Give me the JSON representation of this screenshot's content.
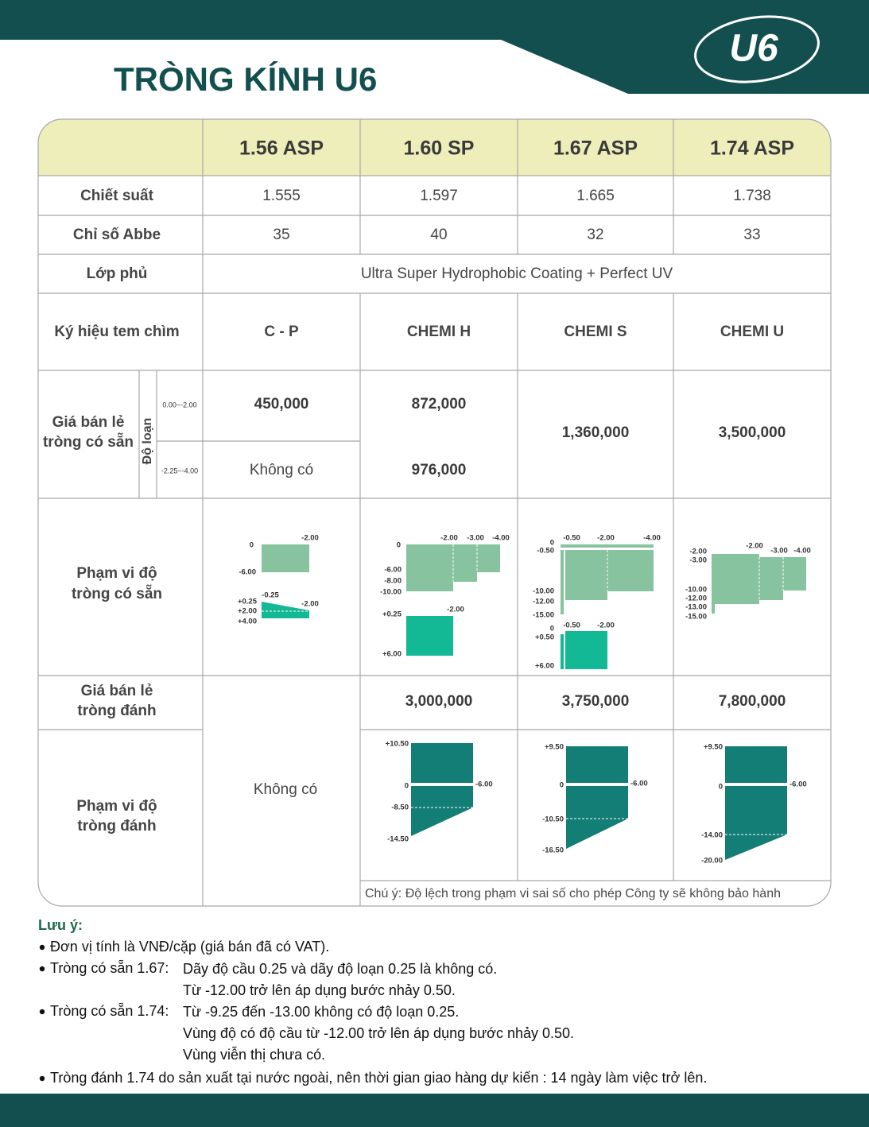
{
  "header": {
    "title": "TRÒNG KÍNH U6",
    "logo": "U6"
  },
  "table": {
    "columns": [
      "1.56 ASP",
      "1.60 SP",
      "1.67 ASP",
      "1.74 ASP"
    ],
    "refractive_index": {
      "label": "Chiết suất",
      "values": [
        "1.555",
        "1.597",
        "1.665",
        "1.738"
      ]
    },
    "abbe": {
      "label": "Chỉ số Abbe",
      "values": [
        "35",
        "40",
        "32",
        "33"
      ]
    },
    "coating": {
      "label": "Lớp phủ",
      "value": "Ultra Super Hydrophobic Coating + Perfect UV"
    },
    "stamp": {
      "label": "Ký hiệu tem chìm",
      "values": [
        "C - P",
        "CHEMI H",
        "CHEMI S",
        "CHEMI U"
      ]
    },
    "stock_price": {
      "label": [
        "Giá bán lẻ",
        "tròng có sẵn"
      ],
      "type_label": "Độ loạn",
      "ranges": [
        "0.00~-2.00",
        "-2.25~-4.00"
      ],
      "rows": [
        [
          "450,000",
          "872,000"
        ],
        [
          "Không có",
          "976,000"
        ]
      ],
      "merged": [
        "1,360,000",
        "3,500,000"
      ]
    },
    "stock_range": {
      "label": [
        "Phạm vi độ",
        "tròng có sẵn"
      ],
      "diagrams": [
        [
          "0",
          "-2.00",
          "-6.00",
          "+0.25",
          "-0.25",
          "-2.00",
          "+2.00",
          "+4.00"
        ],
        [
          "0",
          "-2.00",
          "-3.00",
          "-4.00",
          "-6.00",
          "-8.00",
          "-10.00",
          "+0.25",
          "-2.00",
          "+6.00"
        ],
        [
          "0",
          "-0.50",
          "-0.50",
          "-2.00",
          "-4.00",
          "-10.00",
          "-12.00",
          "-15.00",
          "0",
          "+0.50",
          "-0.50",
          "-2.00",
          "+6.00"
        ],
        [
          "-2.00",
          "-3.00",
          "-2.00",
          "-3.00",
          "-4.00",
          "-10.00",
          "-12.00",
          "-13.00",
          "-15.00"
        ]
      ]
    },
    "surfaced_price": {
      "label": [
        "Giá bán lẻ",
        "tròng đánh"
      ],
      "values": [
        "3,000,000",
        "3,750,000",
        "7,800,000"
      ]
    },
    "surfaced_range": {
      "label": [
        "Phạm vi độ",
        "tròng đánh"
      ],
      "diagrams": [
        [
          "+10.50",
          "0",
          "-6.00",
          "-8.50",
          "-14.50"
        ],
        [
          "+9.50",
          "0",
          "-6.00",
          "-10.50",
          "-16.50"
        ],
        [
          "+9.50",
          "0",
          "-6.00",
          "-14.00",
          "-20.00"
        ]
      ]
    },
    "surfaced_none": "Không có",
    "note": "Chú ý: Độ lệch trong phạm vi sai số cho phép Công ty sẽ không bảo hành"
  },
  "notes": {
    "title": "Lưu ý:",
    "items": [
      {
        "text": "Đơn vị tính là VNĐ/cặp (giá bán đã có VAT)."
      },
      {
        "label": "Tròng có sẵn 1.67:",
        "lines": [
          "Dãy độ cầu 0.25 và dãy độ loạn 0.25 là không có.",
          "Từ -12.00 trở lên áp dụng bước nhảy 0.50."
        ]
      },
      {
        "label": "Tròng có sẵn 1.74:",
        "lines": [
          "Từ -9.25 đến -13.00 không có độ loạn 0.25.",
          "Vùng độ có độ cầu từ -12.00 trở lên áp dụng bước nhảy 0.50.",
          "Vùng viễn thị chưa có."
        ]
      },
      {
        "text": "Tròng đánh 1.74 do sản xuất tại nước ngoài, nên thời gian giao hàng dự kiến : 14 ngày làm việc trở lên."
      }
    ]
  }
}
